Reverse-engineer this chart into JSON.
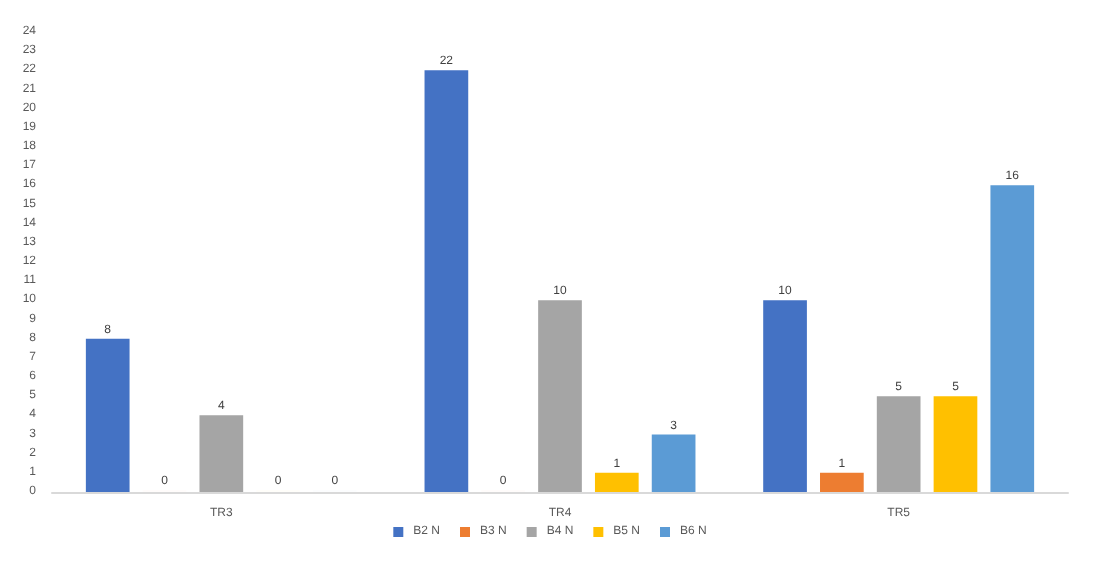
{
  "chart_data": {
    "type": "bar",
    "categories": [
      "TR3",
      "TR4",
      "TR5"
    ],
    "series": [
      {
        "name": "B2 N",
        "color": "#4472c4",
        "values": [
          8,
          22,
          10
        ]
      },
      {
        "name": "B3 N",
        "color": "#ed7d31",
        "values": [
          0,
          0,
          1
        ]
      },
      {
        "name": "B4 N",
        "color": "#a5a5a5",
        "values": [
          4,
          10,
          5
        ]
      },
      {
        "name": "B5 N",
        "color": "#ffc000",
        "values": [
          0,
          1,
          5
        ]
      },
      {
        "name": "B6 N",
        "color": "#5b9bd5",
        "values": [
          0,
          3,
          16
        ]
      }
    ],
    "ylim": [
      0,
      24
    ],
    "yticks": [
      0,
      1,
      2,
      3,
      4,
      5,
      6,
      7,
      8,
      9,
      10,
      11,
      12,
      13,
      14,
      15,
      16,
      17,
      18,
      19,
      20,
      21,
      22,
      23,
      24
    ],
    "grid": false,
    "legend": "bottom",
    "data_labels": true
  }
}
